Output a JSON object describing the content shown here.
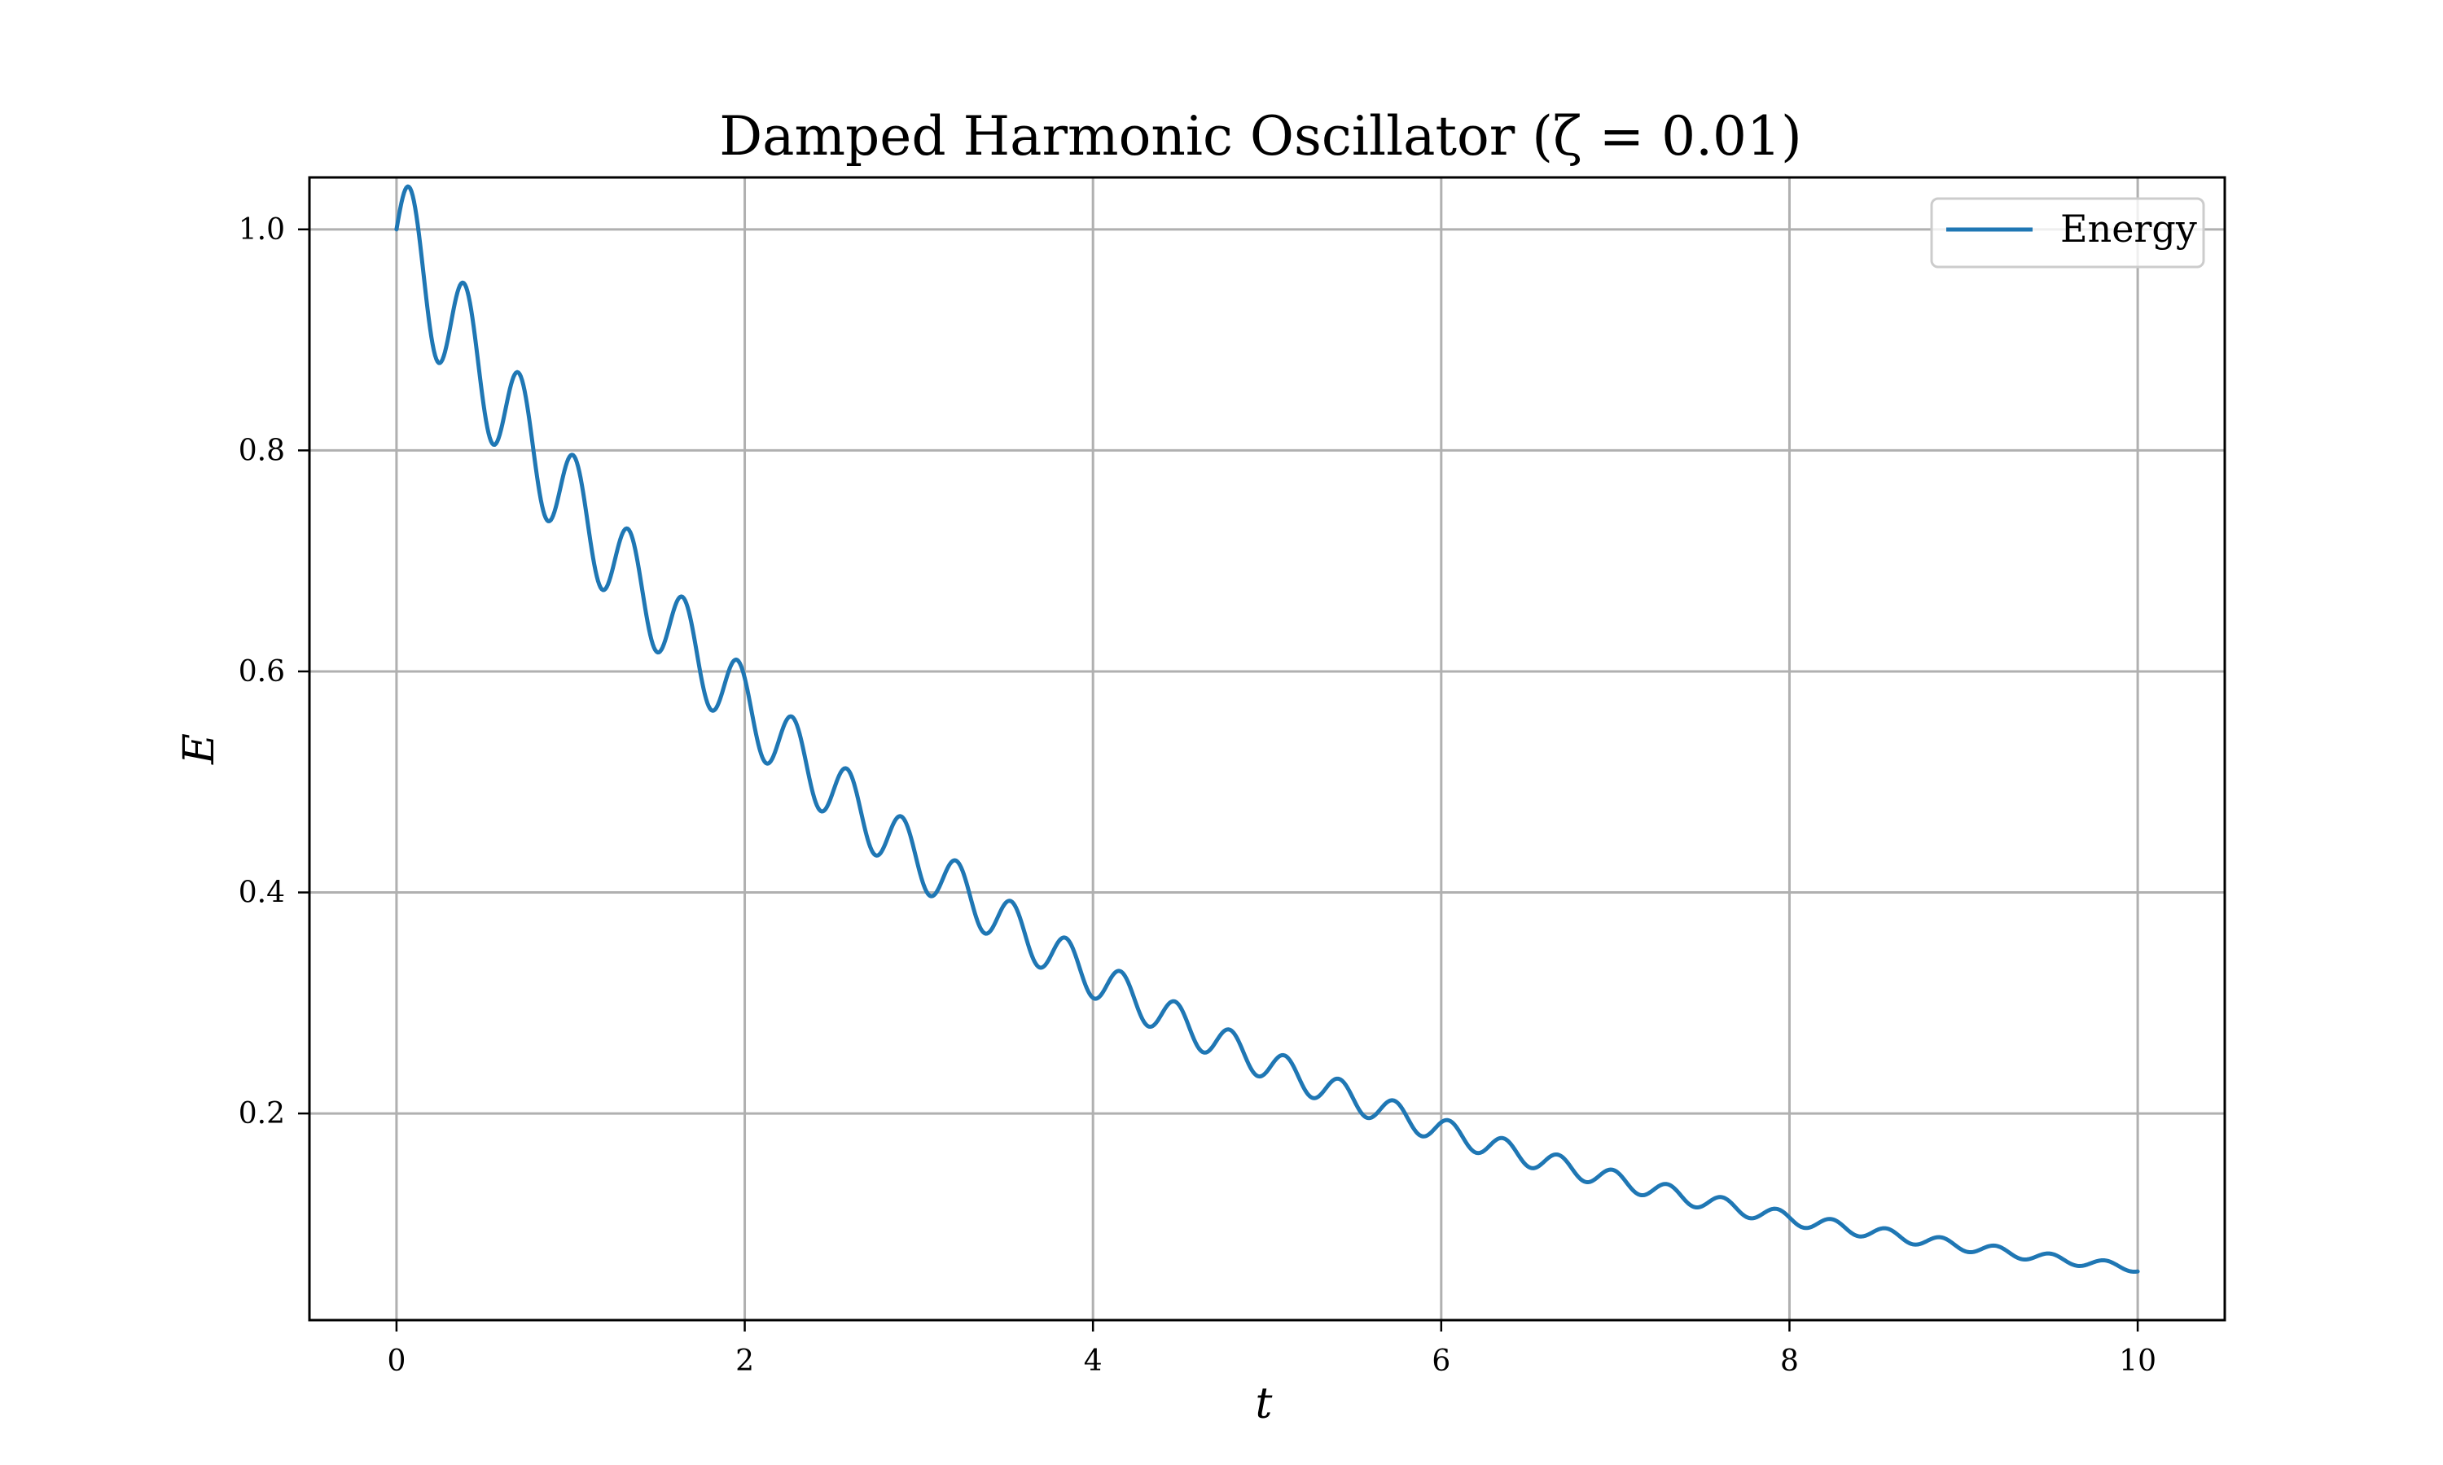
{
  "chart_data": {
    "type": "line",
    "title": "Damped Harmonic Oscillator (ζ = 0.01)",
    "xlabel": "t",
    "ylabel": "E",
    "xlim": [
      -0.5,
      10.5
    ],
    "ylim": [
      0.013,
      1.047
    ],
    "grid": true,
    "legend_position": "top-right",
    "x_ticks": [
      0,
      2,
      4,
      6,
      8,
      10
    ],
    "x_tick_labels": [
      "0",
      "2",
      "4",
      "6",
      "8",
      "10"
    ],
    "y_ticks": [
      0.2,
      0.4,
      0.6,
      0.8,
      1.0
    ],
    "y_tick_labels": [
      "0.2",
      "0.4",
      "0.6",
      "0.8",
      "1.0"
    ],
    "series": [
      {
        "name": "Energy",
        "color": "#1f77b4",
        "x": [
          0,
          0.5,
          1,
          1.5,
          2,
          2.5,
          3,
          3.5,
          4,
          4.5,
          5,
          5.5,
          6,
          6.5,
          7,
          7.5,
          8,
          8.5,
          9,
          9.5,
          10
        ],
        "y": [
          1.0,
          0.87,
          0.754,
          0.656,
          0.569,
          0.495,
          0.43,
          0.373,
          0.324,
          0.282,
          0.245,
          0.213,
          0.185,
          0.161,
          0.14,
          0.121,
          0.105,
          0.092,
          0.08,
          0.069,
          0.06
        ],
        "ripple_period": 0.314,
        "ripple_relative_amplitude": 0.06
      }
    ]
  }
}
